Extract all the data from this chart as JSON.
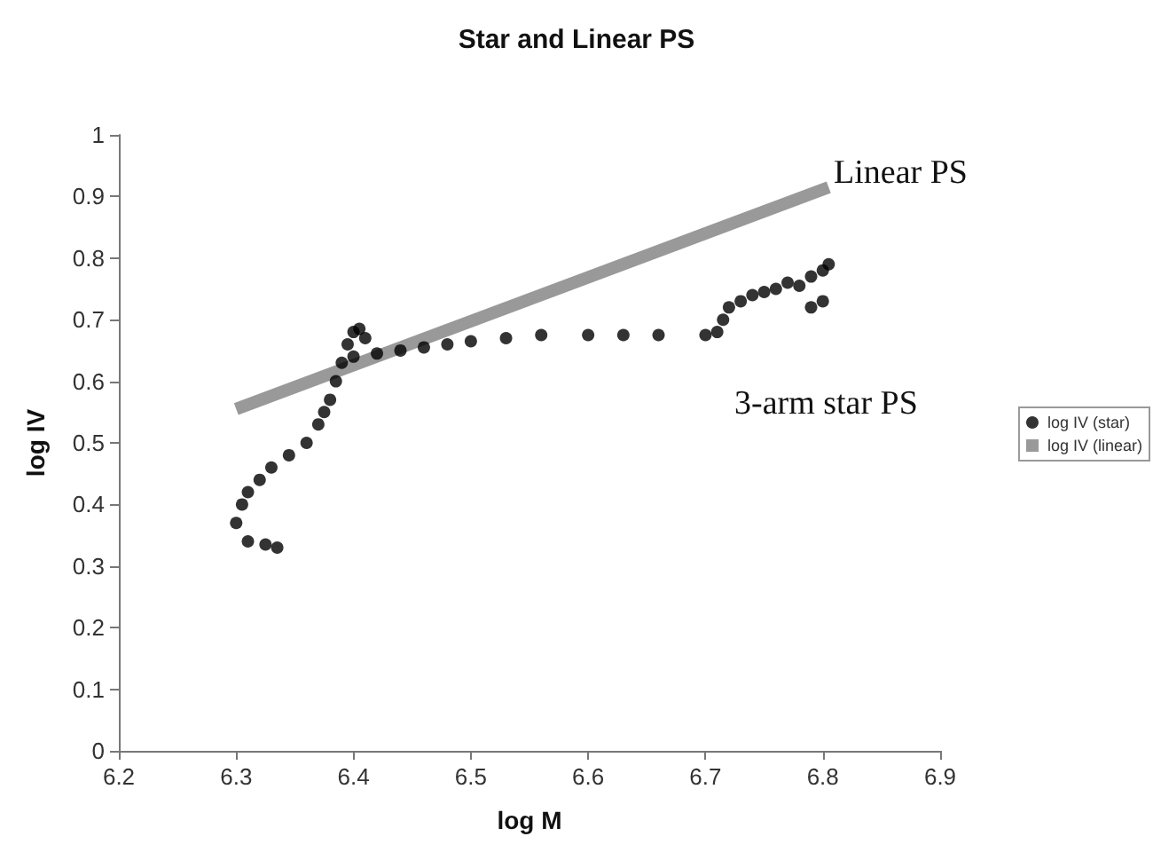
{
  "chart_data": {
    "type": "scatter",
    "title": "Star and Linear PS",
    "xlabel": "log M",
    "ylabel": "log IV",
    "xlim": [
      6.2,
      6.9
    ],
    "xticks": [
      6.2,
      6.3,
      6.4,
      6.5,
      6.6,
      6.7,
      6.8,
      6.9
    ],
    "ylim": [
      0,
      1
    ],
    "yticks": [
      0,
      0.1,
      0.2,
      0.3,
      0.4,
      0.5,
      0.6,
      0.7,
      0.8,
      0.9,
      1
    ],
    "grid": false,
    "legend": "right",
    "series": [
      {
        "name": "log IV (star)",
        "marker": "circle",
        "color": "#000000",
        "x": [
          6.335,
          6.325,
          6.31,
          6.3,
          6.305,
          6.31,
          6.32,
          6.33,
          6.345,
          6.36,
          6.37,
          6.375,
          6.38,
          6.385,
          6.39,
          6.395,
          6.4,
          6.405,
          6.41,
          6.4,
          6.42,
          6.44,
          6.46,
          6.48,
          6.5,
          6.53,
          6.56,
          6.6,
          6.63,
          6.66,
          6.7,
          6.71,
          6.715,
          6.72,
          6.73,
          6.74,
          6.75,
          6.76,
          6.77,
          6.78,
          6.79,
          6.8,
          6.805,
          6.8,
          6.79
        ],
        "values": [
          0.33,
          0.335,
          0.34,
          0.37,
          0.4,
          0.42,
          0.44,
          0.46,
          0.48,
          0.5,
          0.53,
          0.55,
          0.57,
          0.6,
          0.63,
          0.66,
          0.68,
          0.685,
          0.67,
          0.64,
          0.645,
          0.65,
          0.655,
          0.66,
          0.665,
          0.67,
          0.675,
          0.675,
          0.675,
          0.675,
          0.675,
          0.68,
          0.7,
          0.72,
          0.73,
          0.74,
          0.745,
          0.75,
          0.76,
          0.755,
          0.77,
          0.78,
          0.79,
          0.73,
          0.72
        ]
      },
      {
        "name": "log IV (linear)",
        "type": "line",
        "marker": "none",
        "color": "#999999",
        "x": [
          6.3,
          6.805
        ],
        "values": [
          0.555,
          0.915
        ]
      }
    ],
    "annotations": [
      "Linear PS",
      "3-arm star PS"
    ]
  }
}
